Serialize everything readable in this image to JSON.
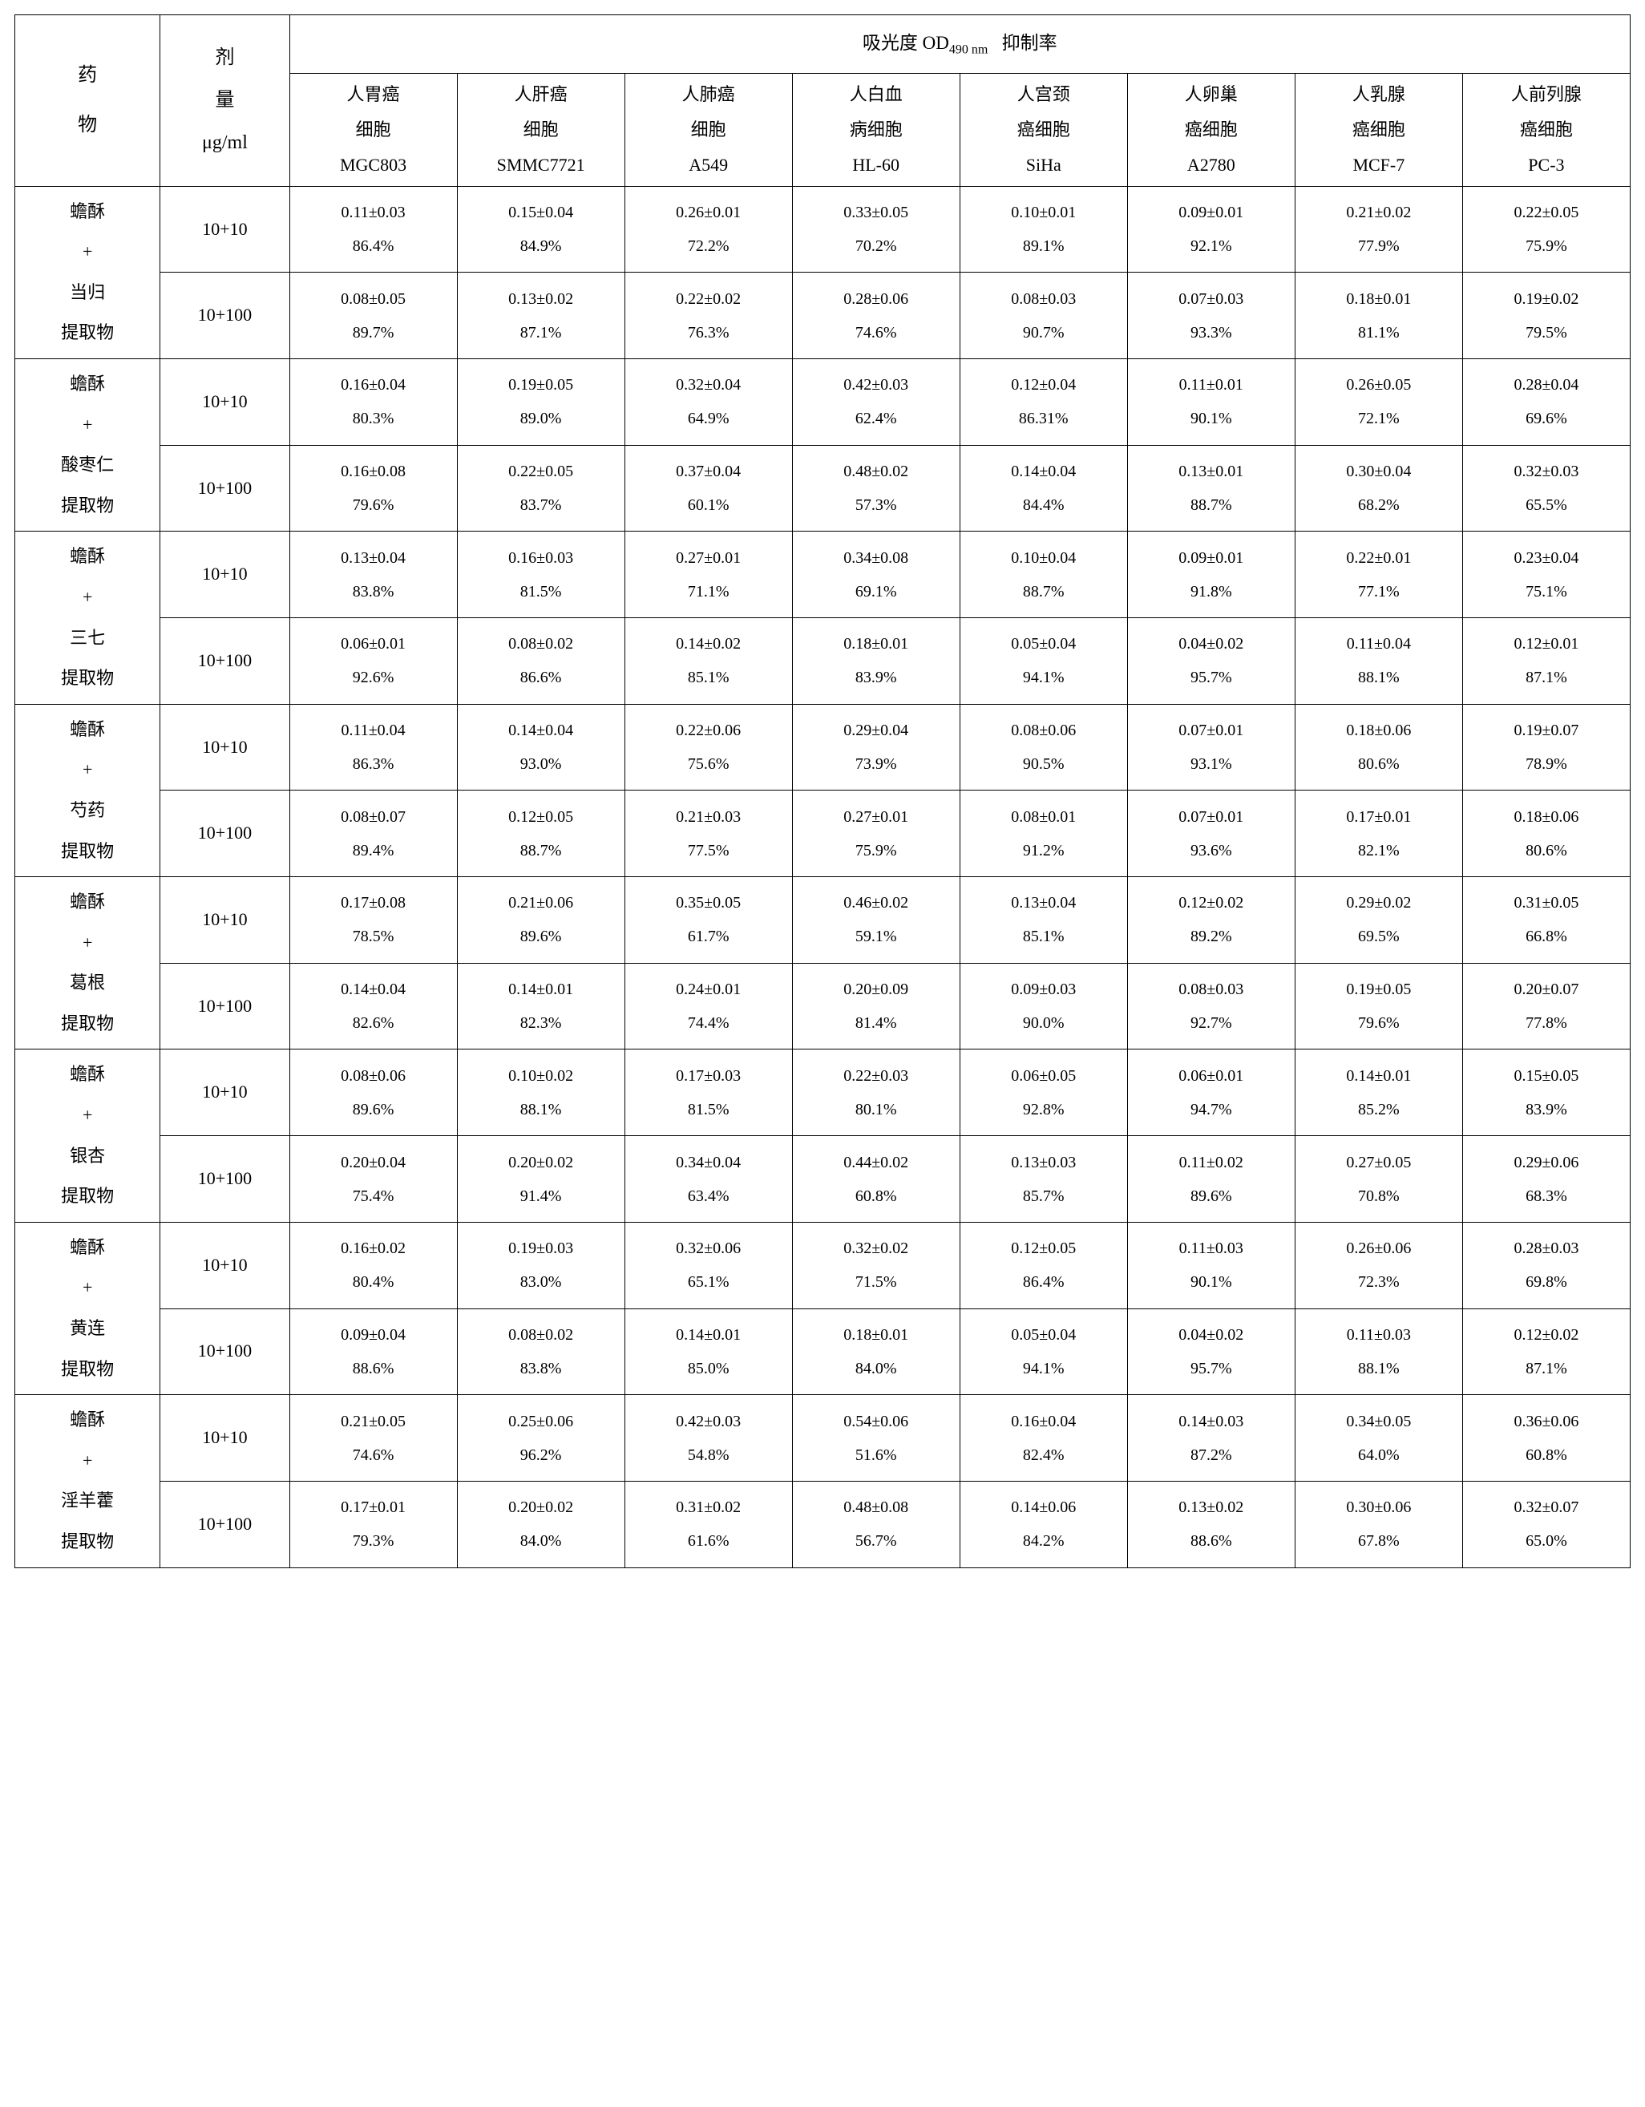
{
  "headers": {
    "drug_title": "药<br>物",
    "dose_title": "剂<br>量<br>μg/ml",
    "top_title": "吸光度 OD<sub>490 nm</sub>&nbsp;&nbsp;&nbsp;抑制率",
    "cells": [
      "人胃癌<br>细胞<br>MGC803",
      "人肝癌<br>细胞<br>SMMC7721",
      "人肺癌<br>细胞<br>A549",
      "人白血<br>病细胞<br>HL-60",
      "人宫颈<br>癌细胞<br>SiHa",
      "人卵巢<br>癌细胞<br>A2780",
      "人乳腺<br>癌细胞<br>MCF-7",
      "人前列腺<br>癌细胞<br>PC-3"
    ]
  },
  "groups": [
    {
      "name": "蟾酥<br>+<br>当归<br>提取物",
      "rows": [
        {
          "dose": "10+10",
          "v": [
            "0.11±0.03<br>86.4%",
            "0.15±0.04<br>84.9%",
            "0.26±0.01<br>72.2%",
            "0.33±0.05<br>70.2%",
            "0.10±0.01<br>89.1%",
            "0.09±0.01<br>92.1%",
            "0.21±0.02<br>77.9%",
            "0.22±0.05<br>75.9%"
          ]
        },
        {
          "dose": "10+100",
          "v": [
            "0.08±0.05<br>89.7%",
            "0.13±0.02<br>87.1%",
            "0.22±0.02<br>76.3%",
            "0.28±0.06<br>74.6%",
            "0.08±0.03<br>90.7%",
            "0.07±0.03<br>93.3%",
            "0.18±0.01<br>81.1%",
            "0.19±0.02<br>79.5%"
          ]
        }
      ]
    },
    {
      "name": "蟾酥<br>+<br>酸枣仁<br>提取物",
      "rows": [
        {
          "dose": "10+10",
          "v": [
            "0.16±0.04<br>80.3%",
            "0.19±0.05<br>89.0%",
            "0.32±0.04<br>64.9%",
            "0.42±0.03<br>62.4%",
            "0.12±0.04<br>86.31%",
            "0.11±0.01<br>90.1%",
            "0.26±0.05<br>72.1%",
            "0.28±0.04<br>69.6%"
          ]
        },
        {
          "dose": "10+100",
          "v": [
            "0.16±0.08<br>79.6%",
            "0.22±0.05<br>83.7%",
            "0.37±0.04<br>60.1%",
            "0.48±0.02<br>57.3%",
            "0.14±0.04<br>84.4%",
            "0.13±0.01<br>88.7%",
            "0.30±0.04<br>68.2%",
            "0.32±0.03<br>65.5%"
          ]
        }
      ]
    },
    {
      "name": "蟾酥<br>+<br>三七<br>提取物",
      "rows": [
        {
          "dose": "10+10",
          "v": [
            "0.13±0.04<br>83.8%",
            "0.16±0.03<br>81.5%",
            "0.27±0.01<br>71.1%",
            "0.34±0.08<br>69.1%",
            "0.10±0.04<br>88.7%",
            "0.09±0.01<br>91.8%",
            "0.22±0.01<br>77.1%",
            "0.23±0.04<br>75.1%"
          ]
        },
        {
          "dose": "10+100",
          "v": [
            "0.06±0.01<br>92.6%",
            "0.08±0.02<br>86.6%",
            "0.14±0.02<br>85.1%",
            "0.18±0.01<br>83.9%",
            "0.05±0.04<br>94.1%",
            "0.04±0.02<br>95.7%",
            "0.11±0.04<br>88.1%",
            "0.12±0.01<br>87.1%"
          ]
        }
      ]
    },
    {
      "name": "蟾酥<br>+<br>芍药<br>提取物",
      "rows": [
        {
          "dose": "10+10",
          "v": [
            "0.11±0.04<br>86.3%",
            "0.14±0.04<br>93.0%",
            "0.22±0.06<br>75.6%",
            "0.29±0.04<br>73.9%",
            "0.08±0.06<br>90.5%",
            "0.07±0.01<br>93.1%",
            "0.18±0.06<br>80.6%",
            "0.19±0.07<br>78.9%"
          ]
        },
        {
          "dose": "10+100",
          "v": [
            "0.08±0.07<br>89.4%",
            "0.12±0.05<br>88.7%",
            "0.21±0.03<br>77.5%",
            "0.27±0.01<br>75.9%",
            "0.08±0.01<br>91.2%",
            "0.07±0.01<br>93.6%",
            "0.17±0.01<br>82.1%",
            "0.18±0.06<br>80.6%"
          ]
        }
      ]
    },
    {
      "name": "蟾酥<br>+<br>葛根<br>提取物",
      "rows": [
        {
          "dose": "10+10",
          "v": [
            "0.17±0.08<br>78.5%",
            "0.21±0.06<br>89.6%",
            "0.35±0.05<br>61.7%",
            "0.46±0.02<br>59.1%",
            "0.13±0.04<br>85.1%",
            "0.12±0.02<br>89.2%",
            "0.29±0.02<br>69.5%",
            "0.31±0.05<br>66.8%"
          ]
        },
        {
          "dose": "10+100",
          "v": [
            "0.14±0.04<br>82.6%",
            "0.14±0.01<br>82.3%",
            "0.24±0.01<br>74.4%",
            "0.20±0.09<br>81.4%",
            "0.09±0.03<br>90.0%",
            "0.08±0.03<br>92.7%",
            "0.19±0.05<br>79.6%",
            "0.20±0.07<br>77.8%"
          ]
        }
      ]
    },
    {
      "name": "蟾酥<br>+<br>银杏<br>提取物",
      "rows": [
        {
          "dose": "10+10",
          "v": [
            "0.08±0.06<br>89.6%",
            "0.10±0.02<br>88.1%",
            "0.17±0.03<br>81.5%",
            "0.22±0.03<br>80.1%",
            "0.06±0.05<br>92.8%",
            "0.06±0.01<br>94.7%",
            "0.14±0.01<br>85.2%",
            "0.15±0.05<br>83.9%"
          ]
        },
        {
          "dose": "10+100",
          "v": [
            "0.20±0.04<br>75.4%",
            "0.20±0.02<br>91.4%",
            "0.34±0.04<br>63.4%",
            "0.44±0.02<br>60.8%",
            "0.13±0.03<br>85.7%",
            "0.11±0.02<br>89.6%",
            "0.27±0.05<br>70.8%",
            "0.29±0.06<br>68.3%"
          ]
        }
      ]
    },
    {
      "name": "蟾酥<br>+<br>黄连<br>提取物",
      "rows": [
        {
          "dose": "10+10",
          "v": [
            "0.16±0.02<br>80.4%",
            "0.19±0.03<br>83.0%",
            "0.32±0.06<br>65.1%",
            "0.32±0.02<br>71.5%",
            "0.12±0.05<br>86.4%",
            "0.11±0.03<br>90.1%",
            "0.26±0.06<br>72.3%",
            "0.28±0.03<br>69.8%"
          ]
        },
        {
          "dose": "10+100",
          "v": [
            "0.09±0.04<br>88.6%",
            "0.08±0.02<br>83.8%",
            "0.14±0.01<br>85.0%",
            "0.18±0.01<br>84.0%",
            "0.05±0.04<br>94.1%",
            "0.04±0.02<br>95.7%",
            "0.11±0.03<br>88.1%",
            "0.12±0.02<br>87.1%"
          ]
        }
      ]
    },
    {
      "name": "蟾酥<br>+<br>淫羊藿<br>提取物",
      "rows": [
        {
          "dose": "10+10",
          "v": [
            "0.21±0.05<br>74.6%",
            "0.25±0.06<br>96.2%",
            "0.42±0.03<br>54.8%",
            "0.54±0.06<br>51.6%",
            "0.16±0.04<br>82.4%",
            "0.14±0.03<br>87.2%",
            "0.34±0.05<br>64.0%",
            "0.36±0.06<br>60.8%"
          ]
        },
        {
          "dose": "10+100",
          "v": [
            "0.17±0.01<br>79.3%",
            "0.20±0.02<br>84.0%",
            "0.31±0.02<br>61.6%",
            "0.48±0.08<br>56.7%",
            "0.14±0.06<br>84.2%",
            "0.13±0.02<br>88.6%",
            "0.30±0.06<br>67.8%",
            "0.32±0.07<br>65.0%"
          ]
        }
      ]
    }
  ]
}
